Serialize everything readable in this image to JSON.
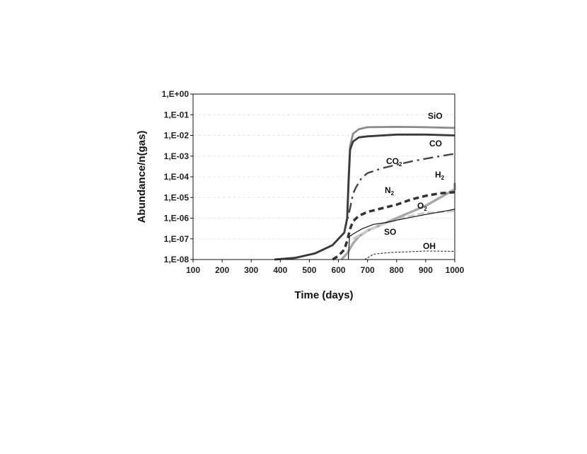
{
  "chart_data": {
    "type": "line",
    "xlabel": "Time (days)",
    "ylabel": "Abundance/n(gas)",
    "xlim": [
      100,
      1000
    ],
    "ylim": [
      1e-08,
      1
    ],
    "y_scale": "log",
    "x_ticks": [
      "100",
      "200",
      "300",
      "400",
      "500",
      "600",
      "700",
      "800",
      "900",
      "1000"
    ],
    "y_ticks": [
      "1,E+00",
      "1,E-01",
      "1,E-02",
      "1,E-03",
      "1,E-04",
      "1,E-05",
      "1,E-06",
      "1,E-07",
      "1,E-08"
    ],
    "grid": "horizontal",
    "series": [
      {
        "name": "SiO",
        "label_main": "SiO",
        "label_sub": "",
        "color": "#8a8a8a",
        "dash": "",
        "width": 2.8,
        "points": [
          [
            380,
            1e-08
          ],
          [
            450,
            1.2e-08
          ],
          [
            520,
            2e-08
          ],
          [
            580,
            5e-08
          ],
          [
            620,
            2e-07
          ],
          [
            630,
            1e-06
          ],
          [
            635,
            0.0001
          ],
          [
            640,
            0.003
          ],
          [
            650,
            0.012
          ],
          [
            670,
            0.02
          ],
          [
            700,
            0.025
          ],
          [
            800,
            0.026
          ],
          [
            900,
            0.025
          ],
          [
            1000,
            0.023
          ]
        ]
      },
      {
        "name": "CO",
        "label_main": "CO",
        "label_sub": "",
        "color": "#3a3a3a",
        "dash": "",
        "width": 2.8,
        "points": [
          [
            380,
            1e-08
          ],
          [
            450,
            1.2e-08
          ],
          [
            520,
            2e-08
          ],
          [
            580,
            5e-08
          ],
          [
            620,
            2e-07
          ],
          [
            630,
            1e-06
          ],
          [
            635,
            5e-05
          ],
          [
            640,
            0.002
          ],
          [
            650,
            0.005
          ],
          [
            670,
            0.008
          ],
          [
            700,
            0.009
          ],
          [
            800,
            0.011
          ],
          [
            900,
            0.011
          ],
          [
            1000,
            0.01
          ]
        ]
      },
      {
        "name": "CO2",
        "label_main": "CO",
        "label_sub": "2",
        "color": "#444444",
        "dash": "14 6 3 6",
        "width": 2.4,
        "points": [
          [
            620,
            2e-07
          ],
          [
            640,
            3e-06
          ],
          [
            650,
            1.5e-05
          ],
          [
            660,
            3e-05
          ],
          [
            680,
            9e-05
          ],
          [
            700,
            0.00015
          ],
          [
            750,
            0.00026
          ],
          [
            800,
            0.00038
          ],
          [
            850,
            0.00055
          ],
          [
            900,
            0.00075
          ],
          [
            950,
            0.001
          ],
          [
            1000,
            0.0013
          ]
        ]
      },
      {
        "name": "H2",
        "label_main": "H",
        "label_sub": "2",
        "color": "#a8a8a8",
        "dash": "",
        "width": 3.5,
        "points": [
          [
            610,
            1e-08
          ],
          [
            630,
            2e-08
          ],
          [
            650,
            6e-08
          ],
          [
            670,
            1.3e-07
          ],
          [
            700,
            2.5e-07
          ],
          [
            750,
            5e-07
          ],
          [
            800,
            1e-06
          ],
          [
            850,
            2e-06
          ],
          [
            900,
            4e-06
          ],
          [
            950,
            1e-05
          ],
          [
            1000,
            2.5e-05
          ],
          [
            1010,
            5e-05
          ]
        ]
      },
      {
        "name": "N2",
        "label_main": "N",
        "label_sub": "2",
        "color": "#333333",
        "dash": "8 5",
        "width": 3.5,
        "points": [
          [
            580,
            1e-08
          ],
          [
            600,
            1.5e-08
          ],
          [
            620,
            3e-08
          ],
          [
            630,
            8e-08
          ],
          [
            640,
            3e-07
          ],
          [
            650,
            7e-07
          ],
          [
            670,
            1.3e-06
          ],
          [
            700,
            2e-06
          ],
          [
            750,
            3e-06
          ],
          [
            800,
            4.5e-06
          ],
          [
            850,
            8e-06
          ],
          [
            900,
            1.2e-05
          ],
          [
            950,
            1.6e-05
          ],
          [
            1000,
            1.8e-05
          ]
        ]
      },
      {
        "name": "O2",
        "label_main": "O",
        "label_sub": "2",
        "color": "#cccccc",
        "dash": "10 4",
        "width": 3,
        "points": [
          [
            650,
            1e-07
          ],
          [
            700,
            2.5e-07
          ],
          [
            750,
            5e-07
          ],
          [
            800,
            8e-07
          ],
          [
            830,
            1.1e-06
          ],
          [
            860,
            1.4e-06
          ],
          [
            900,
            1.8e-06
          ],
          [
            1000,
            2.2e-06
          ]
        ]
      },
      {
        "name": "SO",
        "label_main": "SO",
        "label_sub": "",
        "color": "#111111",
        "dash": "",
        "width": 1.2,
        "points": [
          [
            634,
            1e-08
          ],
          [
            638,
            1.3e-07
          ],
          [
            650,
            1.7e-07
          ],
          [
            680,
            3e-07
          ],
          [
            720,
            5e-07
          ],
          [
            760,
            6e-07
          ],
          [
            800,
            8e-07
          ],
          [
            850,
            1.1e-06
          ],
          [
            900,
            1.5e-06
          ],
          [
            950,
            2e-06
          ],
          [
            1000,
            2.7e-06
          ]
        ]
      },
      {
        "name": "OH",
        "label_main": "OH",
        "label_sub": "",
        "color": "#111111",
        "dash": "3 2",
        "width": 1,
        "points": [
          [
            690,
            1e-08
          ],
          [
            720,
            1.8e-08
          ],
          [
            780,
            2.2e-08
          ],
          [
            850,
            2.4e-08
          ],
          [
            900,
            2.6e-08
          ],
          [
            1000,
            2.5e-08
          ]
        ]
      }
    ]
  }
}
